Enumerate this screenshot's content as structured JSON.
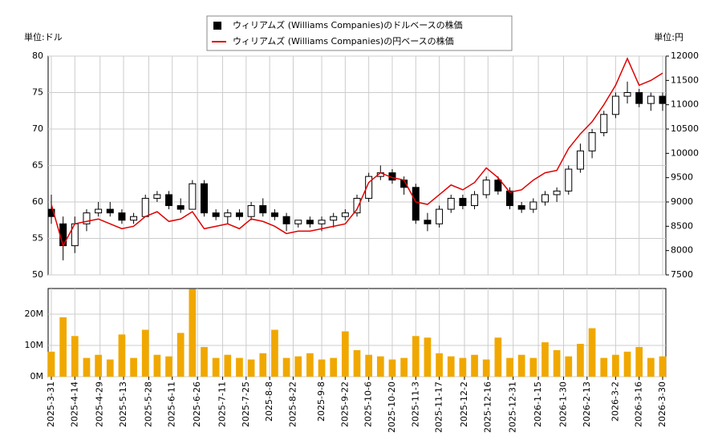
{
  "chart_data": [
    {
      "type": "candlestick",
      "x": [
        "2025-3-31",
        "2025-4-7",
        "2025-4-14",
        "2025-4-21",
        "2025-4-28",
        "2025-5-5",
        "2025-5-12",
        "2025-5-19",
        "2025-5-26",
        "2025-6-2",
        "2025-6-9",
        "2025-6-16",
        "2025-6-23",
        "2025-6-30",
        "2025-7-7",
        "2025-7-14",
        "2025-7-21",
        "2025-7-28",
        "2025-8-4",
        "2025-8-11",
        "2025-8-18",
        "2025-8-25",
        "2025-9-1",
        "2025-9-8",
        "2025-9-15",
        "2025-9-22",
        "2025-9-29",
        "2025-10-6",
        "2025-10-13",
        "2025-10-20",
        "2025-10-27",
        "2025-11-3",
        "2025-11-10",
        "2025-11-17",
        "2025-11-24",
        "2025-12-1",
        "2025-12-8",
        "2025-12-15",
        "2025-12-22",
        "2025-12-29",
        "2026-1-5",
        "2026-1-12",
        "2026-1-19",
        "2026-1-26",
        "2026-2-2",
        "2026-2-9",
        "2026-2-16",
        "2026-2-23",
        "2026-3-2",
        "2026-3-9",
        "2026-3-16",
        "2026-3-23",
        "2026-3-30"
      ],
      "series": [
        {
          "name": "ウィリアムズ (Williams Companies)のドルベースの株価",
          "color": "#000000",
          "open": [
            59,
            57,
            54,
            57,
            58.5,
            59,
            58.5,
            57.5,
            58,
            60.5,
            61,
            59.5,
            59,
            62.5,
            58.5,
            58,
            58.5,
            58,
            59.5,
            58.5,
            58,
            57,
            57.5,
            57,
            57.5,
            58,
            58.5,
            60.5,
            63.5,
            64,
            63,
            62,
            57.5,
            57,
            59,
            60.5,
            59.5,
            61,
            63,
            61.5,
            59.5,
            59,
            60,
            61,
            61.5,
            64.5,
            67,
            69.5,
            72,
            74.5,
            75,
            73.5,
            74.5
          ],
          "high": [
            61,
            58,
            58,
            59,
            60,
            60,
            59,
            58.5,
            61,
            61.5,
            61.5,
            60.5,
            63,
            63,
            59,
            59,
            59,
            60,
            60.5,
            59,
            58.5,
            57.5,
            58,
            58,
            58.5,
            59,
            61,
            64,
            65,
            64.5,
            63.5,
            62.5,
            58.5,
            59.5,
            61,
            61,
            61.5,
            63.5,
            63.5,
            62,
            60,
            60.5,
            61.5,
            62,
            65,
            68,
            70,
            72.5,
            75,
            76.5,
            75.5,
            75,
            75
          ],
          "low": [
            57,
            52,
            53,
            56,
            58,
            58,
            57,
            57,
            58,
            60,
            59,
            58.5,
            59,
            58,
            57.5,
            57,
            57.5,
            57.5,
            58,
            57.5,
            56,
            56.5,
            56.5,
            56,
            56.5,
            57.5,
            58,
            60,
            63,
            62.5,
            61,
            57,
            56,
            56.5,
            58.5,
            59,
            59,
            60.5,
            61,
            59,
            58.5,
            58.5,
            59.5,
            60,
            61,
            64,
            66,
            69,
            71.5,
            73.5,
            73,
            72.5,
            72.5
          ],
          "close": [
            58,
            54,
            57,
            58.5,
            59,
            58.5,
            57.5,
            58,
            60.5,
            61,
            59.5,
            59,
            62.5,
            58.5,
            58,
            58.5,
            58,
            59.5,
            58.5,
            58,
            57,
            57.5,
            57,
            57.5,
            58,
            58.5,
            60.5,
            63.5,
            64,
            63,
            62,
            57.5,
            57,
            59,
            60.5,
            59.5,
            61,
            63,
            61.5,
            59.5,
            59,
            60,
            61,
            61.5,
            64.5,
            67,
            69.5,
            72,
            74.5,
            75,
            73.5,
            74.5,
            73.5
          ]
        },
        {
          "name": "ウィリアムズ (Williams Companies)の円ベースの株価",
          "color": "#e00000",
          "axis": "y2",
          "values": [
            8950,
            8100,
            8550,
            8600,
            8650,
            8550,
            8450,
            8500,
            8700,
            8800,
            8600,
            8650,
            8800,
            8450,
            8500,
            8550,
            8450,
            8650,
            8600,
            8500,
            8350,
            8400,
            8400,
            8450,
            8500,
            8550,
            8850,
            9400,
            9600,
            9500,
            9450,
            9000,
            8950,
            9150,
            9350,
            9250,
            9400,
            9700,
            9500,
            9200,
            9250,
            9450,
            9600,
            9650,
            10100,
            10400,
            10650,
            11000,
            11400,
            11950,
            11400,
            11500,
            11650
          ]
        }
      ],
      "ylabel": "単位:ドル",
      "y2label": "単位:円",
      "ylim": [
        50,
        80
      ],
      "yticks": [
        50,
        55,
        60,
        65,
        70,
        75,
        80
      ],
      "y2lim": [
        7500,
        12000
      ],
      "y2ticks": [
        7500,
        8000,
        8500,
        9000,
        9500,
        10000,
        10500,
        11000,
        11500,
        12000
      ],
      "xlim": [
        "2025-3-31",
        "2026-3-30"
      ],
      "grid": true
    },
    {
      "type": "bar",
      "color": "#f0a800",
      "x": [
        "2025-3-31",
        "2025-4-7",
        "2025-4-14",
        "2025-4-21",
        "2025-4-28",
        "2025-5-5",
        "2025-5-12",
        "2025-5-19",
        "2025-5-26",
        "2025-6-2",
        "2025-6-9",
        "2025-6-16",
        "2025-6-23",
        "2025-6-30",
        "2025-7-7",
        "2025-7-14",
        "2025-7-21",
        "2025-7-28",
        "2025-8-4",
        "2025-8-11",
        "2025-8-18",
        "2025-8-25",
        "2025-9-1",
        "2025-9-8",
        "2025-9-15",
        "2025-9-22",
        "2025-9-29",
        "2025-10-6",
        "2025-10-13",
        "2025-10-20",
        "2025-10-27",
        "2025-11-3",
        "2025-11-10",
        "2025-11-17",
        "2025-11-24",
        "2025-12-1",
        "2025-12-8",
        "2025-12-15",
        "2025-12-22",
        "2025-12-29",
        "2026-1-5",
        "2026-1-12",
        "2026-1-19",
        "2026-1-26",
        "2026-2-2",
        "2026-2-9",
        "2026-2-16",
        "2026-2-23",
        "2026-3-2",
        "2026-3-9",
        "2026-3-16",
        "2026-3-23",
        "2026-3-30"
      ],
      "values": [
        8000000,
        19000000,
        13000000,
        6000000,
        7000000,
        5500000,
        13500000,
        6000000,
        15000000,
        7000000,
        6500000,
        14000000,
        28000000,
        9500000,
        6000000,
        7000000,
        6000000,
        5500000,
        7500000,
        15000000,
        6000000,
        6500000,
        7500000,
        5500000,
        6000000,
        14500000,
        8500000,
        7000000,
        6500000,
        5500000,
        6000000,
        13000000,
        12500000,
        7500000,
        6500000,
        6000000,
        7000000,
        5500000,
        12500000,
        6000000,
        7000000,
        6000000,
        11000000,
        8500000,
        6500000,
        10500000,
        15500000,
        6000000,
        7000000,
        8000000,
        9500000,
        6000000,
        6500000
      ],
      "ylim": [
        0,
        28200000
      ],
      "yticks": [
        {
          "value": 0,
          "label": "0M"
        },
        {
          "value": 10000000,
          "label": "10M"
        },
        {
          "value": 20000000,
          "label": "20M"
        }
      ],
      "xlim": [
        "2025-3-31",
        "2026-3-30"
      ],
      "xticks": [
        "2025-3-31",
        "2025-4-14",
        "2025-4-29",
        "2025-5-13",
        "2025-5-28",
        "2025-6-11",
        "2025-6-26",
        "2025-7-11",
        "2025-7-25",
        "2025-8-8",
        "2025-8-22",
        "2025-9-8",
        "2025-9-22",
        "2025-10-6",
        "2025-10-20",
        "2025-11-3",
        "2025-11-17",
        "2025-12-2",
        "2025-12-16",
        "2025-12-31",
        "2026-1-15",
        "2026-1-30",
        "2026-2-13",
        "2026-3-2",
        "2026-3-16",
        "2026-3-30"
      ],
      "grid": true
    }
  ]
}
